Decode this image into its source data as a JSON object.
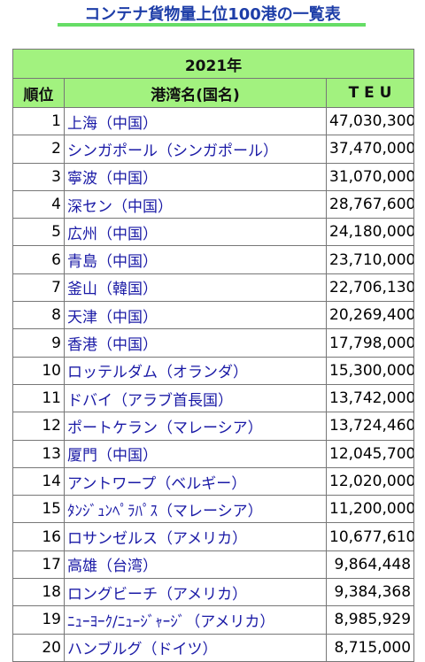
{
  "header": {
    "title": "コンテナ貨物量上位100港の一覧表"
  },
  "table": {
    "caption": "2021年",
    "columns": [
      "順位",
      "港湾名(国名)",
      "T E U"
    ],
    "rows": [
      [
        1,
        "上海（中国）",
        "47,030,300"
      ],
      [
        2,
        "シンガポール（シンガポール）",
        "37,470,000"
      ],
      [
        3,
        "寧波（中国）",
        "31,070,000"
      ],
      [
        4,
        "深セン（中国）",
        "28,767,600"
      ],
      [
        5,
        "広州（中国）",
        "24,180,000"
      ],
      [
        6,
        "青島（中国）",
        "23,710,000"
      ],
      [
        7,
        "釜山（韓国）",
        "22,706,130"
      ],
      [
        8,
        "天津（中国）",
        "20,269,400"
      ],
      [
        9,
        "香港（中国）",
        "17,798,000"
      ],
      [
        10,
        "ロッテルダム（オランダ）",
        "15,300,000"
      ],
      [
        11,
        "ドバイ（アラブ首長国）",
        "13,742,000"
      ],
      [
        12,
        "ポートケラン（マレーシア）",
        "13,724,460"
      ],
      [
        13,
        "厦門（中国）",
        "12,045,700"
      ],
      [
        14,
        "アントワープ（ベルギー）",
        "12,020,000"
      ],
      [
        15,
        "ﾀﾝｼﾞｭﾝﾍﾟﾗﾊﾟｽ（マレーシア）",
        "11,200,000"
      ],
      [
        16,
        "ロサンゼルス（アメリカ）",
        "10,677,610"
      ],
      [
        17,
        "高雄（台湾）",
        "9,864,448"
      ],
      [
        18,
        "ロングビーチ（アメリカ）",
        "9,384,368"
      ],
      [
        19,
        "ﾆｭｰﾖｰｸ/ﾆｭｰｼﾞｬｰｼﾞ（アメリカ）",
        "8,985,929"
      ],
      [
        20,
        "ハンブルグ（ドイツ）",
        "8,715,000"
      ]
    ]
  }
}
